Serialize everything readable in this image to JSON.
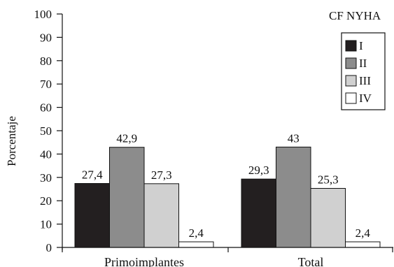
{
  "chart_data": {
    "type": "bar",
    "categories": [
      "Primoimplantes",
      "Total"
    ],
    "series": [
      {
        "name": "I",
        "values": [
          27.4,
          29.3
        ],
        "labels": [
          "27,4",
          "29,3"
        ],
        "color": "#231f20"
      },
      {
        "name": "II",
        "values": [
          42.9,
          43
        ],
        "labels": [
          "42,9",
          "43"
        ],
        "color": "#8c8c8c"
      },
      {
        "name": "III",
        "values": [
          27.3,
          25.3
        ],
        "labels": [
          "27,3",
          "25,3"
        ],
        "color": "#d0d0d0"
      },
      {
        "name": "IV",
        "values": [
          2.4,
          2.4
        ],
        "labels": [
          "2,4",
          "2,4"
        ],
        "color": "#ffffff"
      }
    ],
    "ylabel": "Porcentaje",
    "xlabel": "",
    "ylim": [
      0,
      100
    ],
    "yticks": [
      0,
      10,
      20,
      30,
      40,
      50,
      60,
      70,
      80,
      90,
      100
    ],
    "legend_title": "CF NYHA",
    "legend_position": "top-right",
    "grid": false
  }
}
